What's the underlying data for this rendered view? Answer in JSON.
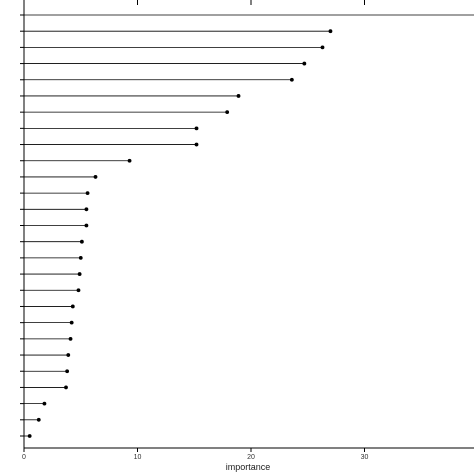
{
  "chart_data": {
    "type": "lollipop",
    "orientation": "horizontal",
    "xlabel": "importance",
    "ylabel": "",
    "xlim": [
      0,
      40
    ],
    "xticks": [
      0,
      10,
      20,
      30
    ],
    "y_tick_labels_visible": false,
    "grid": false,
    "legend": "none",
    "values": [
      40.0,
      27.0,
      26.3,
      24.7,
      23.6,
      18.9,
      17.9,
      15.2,
      15.2,
      9.3,
      6.3,
      5.6,
      5.5,
      5.5,
      5.1,
      5.0,
      4.9,
      4.8,
      4.3,
      4.2,
      4.1,
      3.9,
      3.8,
      3.7,
      1.8,
      1.3,
      0.5
    ],
    "colors": {
      "line": "#000000",
      "point": "#000000",
      "axis": "#000000",
      "background": "#ffffff"
    }
  },
  "axis": {
    "x_title": "importance",
    "x_ticks": [
      "0",
      "10",
      "20",
      "30"
    ]
  }
}
